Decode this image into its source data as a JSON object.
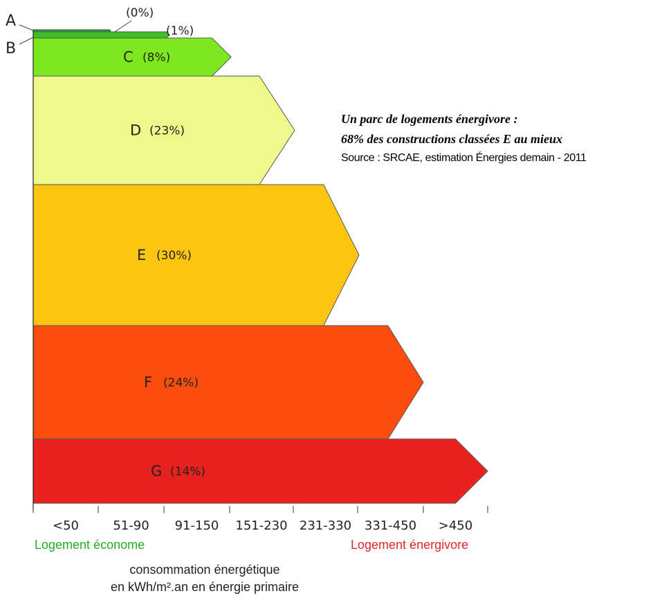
{
  "chart_data": {
    "type": "bar",
    "orientation": "horizontal",
    "categories": [
      "A",
      "B",
      "C",
      "D",
      "E",
      "F",
      "G"
    ],
    "value_labels": [
      "(0%)",
      "(1%)",
      "(8%)",
      "(23%)",
      "(30%)",
      "(24%)",
      "(14%)"
    ],
    "values": [
      0,
      1,
      8,
      23,
      30,
      24,
      14
    ],
    "colors": [
      "#1a9e3a",
      "#3fbf24",
      "#7ee81e",
      "#eef98c",
      "#fcc512",
      "#fb4d0d",
      "#e8221f"
    ],
    "ranges": [
      "<50",
      "51-90",
      "91-150",
      "151-230",
      "231-330",
      "331-450",
      ">450"
    ]
  },
  "caption": {
    "line1": "Un parc de logements énergivore :",
    "line2": "68% des constructions classées E au mieux",
    "source": "Source : SRCAE, estimation Énergies demain - 2011"
  },
  "axis": {
    "left_label": "Logement économe",
    "right_label": "Logement énergivore",
    "unit_line1": "consommation énergétique",
    "unit_line2": "en kWh/m².an en énergie primaire"
  }
}
